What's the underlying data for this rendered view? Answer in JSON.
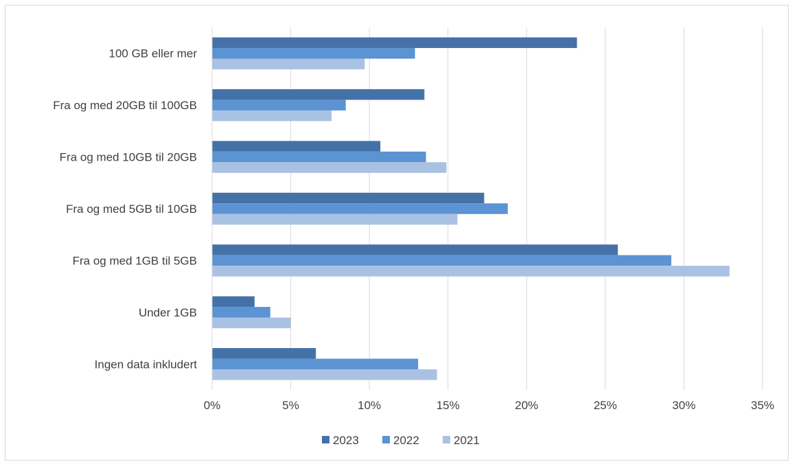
{
  "chart_data": {
    "type": "bar",
    "orientation": "horizontal",
    "categories": [
      "100 GB eller mer",
      "Fra og med 20GB til 100GB",
      "Fra og med 10GB til 20GB",
      "Fra og med 5GB til 10GB",
      "Fra og med 1GB til 5GB",
      "Under 1GB",
      "Ingen data inkludert"
    ],
    "series": [
      {
        "name": "2023",
        "color": "#4472a8",
        "values": [
          23.2,
          13.5,
          10.7,
          17.3,
          25.8,
          2.7,
          6.6
        ]
      },
      {
        "name": "2022",
        "color": "#5b93d3",
        "values": [
          12.9,
          8.5,
          13.6,
          18.8,
          29.2,
          3.7,
          13.1
        ]
      },
      {
        "name": "2021",
        "color": "#a9c1e3",
        "values": [
          9.7,
          7.6,
          14.9,
          15.6,
          32.9,
          5.0,
          14.3
        ]
      }
    ],
    "xlim": [
      0,
      35
    ],
    "xticks": [
      "0%",
      "5%",
      "10%",
      "15%",
      "20%",
      "25%",
      "30%",
      "35%"
    ],
    "xtick_values": [
      0,
      5,
      10,
      15,
      20,
      25,
      30,
      35
    ],
    "grid": "vertical",
    "legend_position": "bottom",
    "title": "",
    "xlabel": "",
    "ylabel": ""
  }
}
